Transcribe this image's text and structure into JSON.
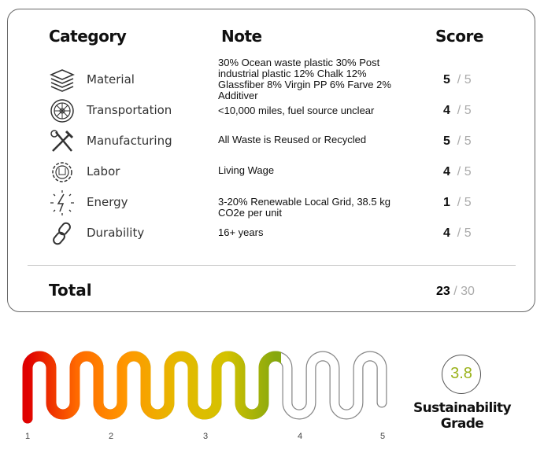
{
  "table": {
    "headers": {
      "category": "Category",
      "note": "Note",
      "score": "Score"
    },
    "rows": [
      {
        "icon": "layers-icon",
        "category": "Material",
        "note": "30% Ocean waste plastic 30% Post industrial plastic 12% Chalk 12% Glassfiber 8% Virgin PP 6% Farve 2% Additiver",
        "score": "5",
        "max": "/ 5"
      },
      {
        "icon": "wheel-icon",
        "category": "Transportation",
        "note": "<10,000 miles, fuel source unclear",
        "score": "4",
        "max": "/ 5"
      },
      {
        "icon": "tools-icon",
        "category": "Manufacturing",
        "note": "All Waste is Reused or Recycled",
        "score": "5",
        "max": "/ 5"
      },
      {
        "icon": "gear-hand-icon",
        "category": "Labor",
        "note": "Living Wage",
        "score": "4",
        "max": "/ 5"
      },
      {
        "icon": "lightning-icon",
        "category": "Energy",
        "note": "3-20% Renewable Local Grid, 38.5 kg CO2e per unit",
        "score": "1",
        "max": "/ 5"
      },
      {
        "icon": "chain-link-icon",
        "category": "Durability",
        "note": "16+ years",
        "score": "4",
        "max": "/ 5"
      }
    ],
    "total": {
      "label": "Total",
      "score": "23",
      "max": "/ 30"
    }
  },
  "gauge": {
    "value": 3.8,
    "min": 1,
    "max": 5,
    "labels": [
      "1",
      "2",
      "3",
      "4",
      "5"
    ],
    "colors": [
      "#e00000",
      "#ff6a00",
      "#ff9800",
      "#e6b800",
      "#d4c200",
      "#86a80f"
    ],
    "empty_color": "#888888"
  },
  "grade": {
    "value": "3.8",
    "title_line1": "Sustainability",
    "title_line2": "Grade",
    "color": "#9ab21a"
  }
}
